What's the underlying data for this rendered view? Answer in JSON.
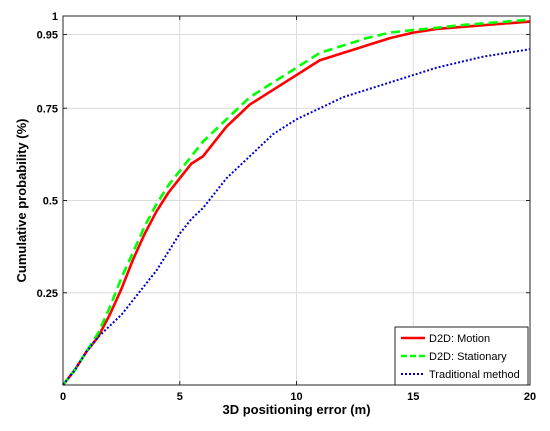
{
  "chart_data": {
    "type": "line",
    "title": "",
    "xlabel": "3D positioning error (m)",
    "ylabel": "Cumulative probability (%)",
    "xlim": [
      0,
      20
    ],
    "ylim": [
      0,
      1
    ],
    "xticks": [
      0,
      5,
      10,
      15,
      20
    ],
    "xtick_labels": [
      "0",
      "5",
      "10",
      "15",
      "20"
    ],
    "yticks": [
      0.25,
      0.5,
      0.75,
      0.95,
      1
    ],
    "ytick_labels": [
      "0.25",
      "0.5",
      "0.75",
      "0.95",
      "1"
    ],
    "grid": true,
    "legend_position": "bottom-right",
    "series": [
      {
        "name": "D2D: Motion",
        "color": "#ff0000",
        "style": "solid",
        "x": [
          0,
          0.5,
          1,
          1.5,
          2,
          2.5,
          3,
          3.5,
          4,
          4.5,
          5,
          5.5,
          6,
          6.5,
          7,
          7.5,
          8,
          8.5,
          9,
          9.5,
          10,
          10.5,
          11,
          11.5,
          12,
          12.5,
          13,
          14,
          15,
          16,
          17,
          18,
          19,
          20
        ],
        "y": [
          0,
          0.04,
          0.09,
          0.13,
          0.19,
          0.26,
          0.34,
          0.41,
          0.47,
          0.52,
          0.56,
          0.6,
          0.62,
          0.66,
          0.7,
          0.73,
          0.76,
          0.78,
          0.8,
          0.82,
          0.84,
          0.86,
          0.88,
          0.89,
          0.9,
          0.91,
          0.92,
          0.94,
          0.955,
          0.965,
          0.97,
          0.975,
          0.98,
          0.985
        ]
      },
      {
        "name": "D2D: Stationary",
        "color": "#00ff00",
        "style": "dashed",
        "x": [
          0,
          0.5,
          1,
          1.5,
          2,
          2.5,
          3,
          3.5,
          4,
          4.5,
          5,
          5.5,
          6,
          6.5,
          7,
          7.5,
          8,
          8.5,
          9,
          9.5,
          10,
          10.5,
          11,
          11.5,
          12,
          12.5,
          13,
          14,
          15,
          16,
          17,
          18,
          19,
          20
        ],
        "y": [
          0,
          0.04,
          0.09,
          0.14,
          0.21,
          0.29,
          0.36,
          0.43,
          0.49,
          0.54,
          0.58,
          0.62,
          0.66,
          0.69,
          0.72,
          0.75,
          0.78,
          0.8,
          0.82,
          0.84,
          0.86,
          0.88,
          0.9,
          0.91,
          0.92,
          0.93,
          0.94,
          0.955,
          0.962,
          0.968,
          0.975,
          0.98,
          0.985,
          0.99
        ]
      },
      {
        "name": "Traditional method",
        "color": "#0000cc",
        "style": "dotted",
        "x": [
          0,
          0.5,
          1,
          1.5,
          2,
          2.5,
          3,
          3.5,
          4,
          4.5,
          5,
          5.5,
          6,
          6.5,
          7,
          7.5,
          8,
          8.5,
          9,
          9.5,
          10,
          11,
          12,
          13,
          14,
          15,
          16,
          17,
          18,
          19,
          20
        ],
        "y": [
          0,
          0.04,
          0.09,
          0.13,
          0.16,
          0.19,
          0.23,
          0.27,
          0.31,
          0.36,
          0.41,
          0.45,
          0.48,
          0.52,
          0.56,
          0.59,
          0.62,
          0.65,
          0.68,
          0.7,
          0.72,
          0.75,
          0.78,
          0.8,
          0.82,
          0.84,
          0.86,
          0.875,
          0.89,
          0.9,
          0.91
        ]
      }
    ]
  }
}
